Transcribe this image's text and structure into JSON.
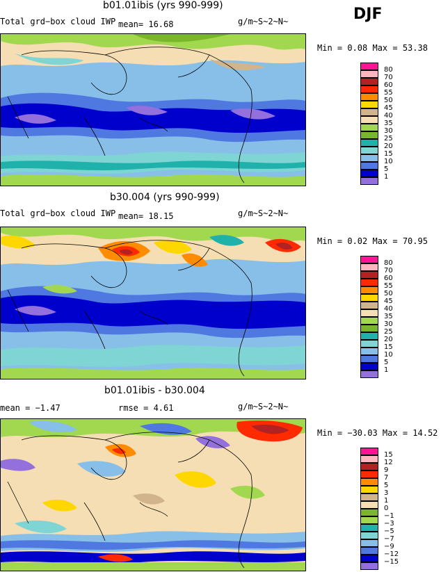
{
  "season": "DJF",
  "palette": {
    "magenta": "#ff1493",
    "pink": "#ffb6c1",
    "darkred": "#b22222",
    "red": "#ff2a00",
    "orange": "#ff8c00",
    "gold": "#ffd700",
    "tan": "#d2b48c",
    "wheat": "#f5deb3",
    "lightgreen": "#a2d84f",
    "olive": "#7ab52e",
    "teal": "#20b2aa",
    "aqua": "#7fd4d4",
    "lightblue": "#87bfe8",
    "cornflower": "#4f78e0",
    "blue": "#0000cd",
    "violet": "#9370db"
  },
  "panels": [
    {
      "title": "b01.01ibis (yrs 990-999)",
      "field": "Total grd−box cloud IWP",
      "stat": "mean=  16.68",
      "units": "g/m~S~2~N~",
      "minmax": "Min =   0.08 Max =  53.38",
      "colorbar": {
        "levels": [
          "80",
          "70",
          "60",
          "55",
          "50",
          "45",
          "40",
          "35",
          "30",
          "25",
          "20",
          "15",
          "10",
          "5",
          "1"
        ],
        "colors": [
          "magenta",
          "pink",
          "darkred",
          "red",
          "orange",
          "gold",
          "tan",
          "wheat",
          "lightgreen",
          "olive",
          "teal",
          "aqua",
          "lightblue",
          "cornflower",
          "blue",
          "violet"
        ]
      }
    },
    {
      "title": "b30.004 (yrs 990-999)",
      "field": "Total grd−box cloud IWP",
      "stat": "mean=  18.15",
      "units": "g/m~S~2~N~",
      "minmax": "Min =   0.02 Max =  70.95",
      "colorbar": {
        "levels": [
          "80",
          "70",
          "60",
          "55",
          "50",
          "45",
          "40",
          "35",
          "30",
          "25",
          "20",
          "15",
          "10",
          "5",
          "1"
        ],
        "colors": [
          "magenta",
          "pink",
          "darkred",
          "red",
          "orange",
          "gold",
          "tan",
          "wheat",
          "lightgreen",
          "olive",
          "teal",
          "aqua",
          "lightblue",
          "cornflower",
          "blue",
          "violet"
        ]
      }
    },
    {
      "title": "b01.01ibis - b30.004",
      "field": "mean =  −1.47",
      "stat": "rmse =   4.61",
      "units": "g/m~S~2~N~",
      "minmax": "Min = −30.03 Max =  14.52",
      "colorbar": {
        "levels": [
          "15",
          "12",
          "9",
          "7",
          "5",
          "3",
          "1",
          "0",
          "−1",
          "−3",
          "−5",
          "−7",
          "−9",
          "−12",
          "−15"
        ],
        "colors": [
          "magenta",
          "pink",
          "darkred",
          "red",
          "orange",
          "gold",
          "tan",
          "wheat",
          "olive",
          "lightgreen",
          "teal",
          "aqua",
          "lightblue",
          "cornflower",
          "blue",
          "violet"
        ]
      }
    }
  ]
}
